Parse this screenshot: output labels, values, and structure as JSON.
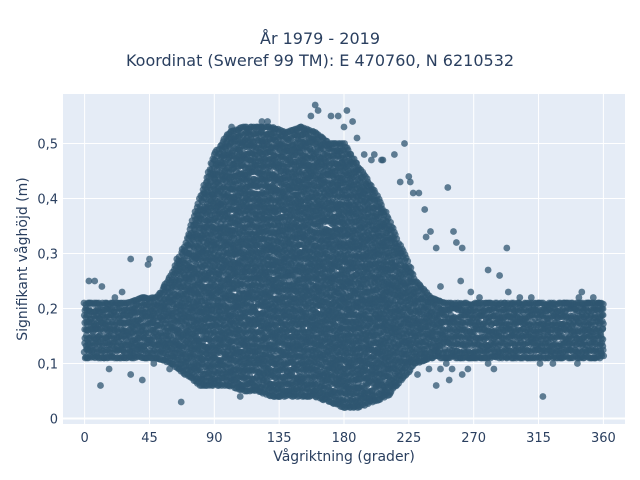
{
  "chart_data": {
    "type": "scatter",
    "title_line1": "År 1979 - 2019",
    "title_line2": "Koordinat (Sweref 99 TM): E 470760, N 6210532",
    "xlabel": "Vågriktning (grader)",
    "ylabel": "Signifikant våghöjd (m)",
    "xlim": [
      -15,
      375
    ],
    "ylim": [
      -0.01,
      0.59
    ],
    "x_ticks": [
      0,
      45,
      90,
      135,
      180,
      225,
      270,
      315,
      360
    ],
    "y_ticks": [
      0,
      0.1,
      0.2,
      0.3,
      0.4,
      0.5
    ],
    "y_tick_labels": [
      "0",
      "0,1",
      "0,2",
      "0,3",
      "0,4",
      "0,5"
    ],
    "grid": true,
    "colors": {
      "marker": "#2f5570",
      "plot_bg": "#e5ecf6",
      "grid": "#ffffff",
      "text": "#2a3f5f"
    },
    "envelope": [
      [
        0,
        0.11,
        0.21
      ],
      [
        10,
        0.11,
        0.21
      ],
      [
        20,
        0.11,
        0.21
      ],
      [
        30,
        0.11,
        0.21
      ],
      [
        40,
        0.11,
        0.22
      ],
      [
        50,
        0.11,
        0.22
      ],
      [
        60,
        0.1,
        0.26
      ],
      [
        70,
        0.08,
        0.32
      ],
      [
        80,
        0.06,
        0.4
      ],
      [
        90,
        0.06,
        0.48
      ],
      [
        100,
        0.06,
        0.52
      ],
      [
        110,
        0.05,
        0.53
      ],
      [
        120,
        0.05,
        0.53
      ],
      [
        130,
        0.04,
        0.53
      ],
      [
        140,
        0.04,
        0.52
      ],
      [
        150,
        0.04,
        0.53
      ],
      [
        160,
        0.04,
        0.52
      ],
      [
        170,
        0.03,
        0.5
      ],
      [
        180,
        0.02,
        0.5
      ],
      [
        190,
        0.02,
        0.46
      ],
      [
        200,
        0.03,
        0.42
      ],
      [
        210,
        0.04,
        0.37
      ],
      [
        220,
        0.07,
        0.31
      ],
      [
        230,
        0.1,
        0.25
      ],
      [
        240,
        0.11,
        0.22
      ],
      [
        250,
        0.11,
        0.21
      ],
      [
        270,
        0.11,
        0.21
      ],
      [
        300,
        0.11,
        0.21
      ],
      [
        330,
        0.11,
        0.21
      ],
      [
        360,
        0.11,
        0.21
      ]
    ],
    "outliers": [
      [
        3,
        0.25
      ],
      [
        7,
        0.25
      ],
      [
        11,
        0.06
      ],
      [
        12,
        0.24
      ],
      [
        17,
        0.09
      ],
      [
        21,
        0.22
      ],
      [
        26,
        0.23
      ],
      [
        32,
        0.08
      ],
      [
        32,
        0.29
      ],
      [
        33,
        0.13
      ],
      [
        40,
        0.07
      ],
      [
        44,
        0.28
      ],
      [
        45,
        0.29
      ],
      [
        48,
        0.1
      ],
      [
        55,
        0.24
      ],
      [
        59,
        0.09
      ],
      [
        64,
        0.29
      ],
      [
        67,
        0.03
      ],
      [
        102,
        0.53
      ],
      [
        108,
        0.04
      ],
      [
        123,
        0.54
      ],
      [
        127,
        0.54
      ],
      [
        150,
        0.53
      ],
      [
        157,
        0.55
      ],
      [
        160,
        0.57
      ],
      [
        162,
        0.56
      ],
      [
        171,
        0.55
      ],
      [
        176,
        0.55
      ],
      [
        180,
        0.53
      ],
      [
        182,
        0.56
      ],
      [
        186,
        0.54
      ],
      [
        189,
        0.51
      ],
      [
        194,
        0.48
      ],
      [
        199,
        0.47
      ],
      [
        201,
        0.48
      ],
      [
        206,
        0.47
      ],
      [
        207,
        0.47
      ],
      [
        215,
        0.48
      ],
      [
        219,
        0.43
      ],
      [
        222,
        0.5
      ],
      [
        225,
        0.44
      ],
      [
        226,
        0.43
      ],
      [
        228,
        0.41
      ],
      [
        232,
        0.41
      ],
      [
        236,
        0.38
      ],
      [
        237,
        0.33
      ],
      [
        240,
        0.34
      ],
      [
        244,
        0.31
      ],
      [
        247,
        0.24
      ],
      [
        252,
        0.42
      ],
      [
        256,
        0.34
      ],
      [
        258,
        0.32
      ],
      [
        261,
        0.25
      ],
      [
        262,
        0.31
      ],
      [
        268,
        0.23
      ],
      [
        274,
        0.22
      ],
      [
        280,
        0.27
      ],
      [
        288,
        0.26
      ],
      [
        293,
        0.31
      ],
      [
        294,
        0.23
      ],
      [
        302,
        0.22
      ],
      [
        310,
        0.22
      ],
      [
        315,
        0.21
      ],
      [
        318,
        0.04
      ],
      [
        323,
        0.2
      ],
      [
        333,
        0.21
      ],
      [
        343,
        0.22
      ],
      [
        345,
        0.23
      ],
      [
        349,
        0.21
      ],
      [
        353,
        0.22
      ],
      [
        357,
        0.21
      ],
      [
        231,
        0.08
      ],
      [
        236,
        0.11
      ],
      [
        239,
        0.09
      ],
      [
        244,
        0.06
      ],
      [
        247,
        0.09
      ],
      [
        251,
        0.1
      ],
      [
        253,
        0.07
      ],
      [
        255,
        0.09
      ],
      [
        262,
        0.08
      ],
      [
        266,
        0.09
      ],
      [
        270,
        0.11
      ],
      [
        280,
        0.1
      ],
      [
        284,
        0.09
      ],
      [
        298,
        0.11
      ],
      [
        316,
        0.1
      ],
      [
        325,
        0.1
      ],
      [
        342,
        0.1
      ]
    ]
  }
}
